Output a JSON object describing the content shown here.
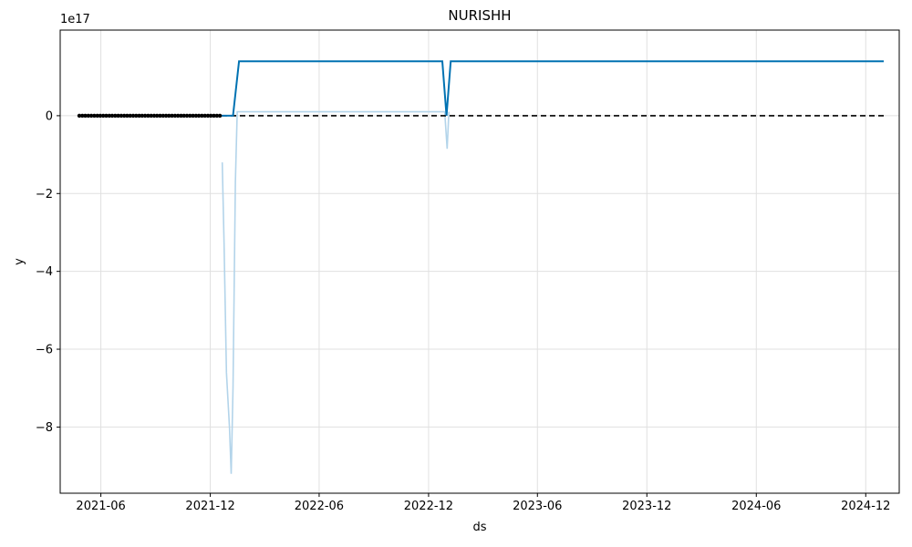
{
  "chart_data": {
    "type": "line",
    "title": "NURISHH",
    "xlabel": "ds",
    "ylabel": "y",
    "y_offset_label": "1e17",
    "x_tick_labels": [
      "2021-06",
      "2021-12",
      "2022-06",
      "2022-12",
      "2023-06",
      "2023-12",
      "2024-06",
      "2024-12"
    ],
    "x_ticks": [
      "2021-06-01",
      "2021-12-01",
      "2022-06-01",
      "2022-12-01",
      "2023-06-01",
      "2023-12-01",
      "2024-06-01",
      "2024-12-01"
    ],
    "y_tick_labels": [
      "0",
      "−2",
      "−4",
      "−6",
      "−8"
    ],
    "y_ticks": [
      0,
      -2,
      -4,
      -6,
      -8
    ],
    "y_unit_multiplier": "1e17",
    "xlim": [
      "2021-03-25",
      "2025-01-26"
    ],
    "ylim": [
      -9.7,
      2.2
    ],
    "grid": true,
    "colors": {
      "forecast": "#0072B2",
      "interval": "#b3d4ea",
      "actual": "#000000",
      "trend_dashed": "#000000",
      "grid": "#e0e0e0"
    },
    "actual_observations": {
      "x_start": "2021-04-26",
      "x_end": "2021-12-20",
      "interval_days": 5,
      "y": 0
    },
    "series": [
      {
        "role": "forecast",
        "style": "solid",
        "x": [
          "2021-12-20",
          "2022-01-08",
          "2022-01-18",
          "2022-12-24",
          "2022-12-31",
          "2023-01-07",
          "2024-12-31"
        ],
        "y": [
          0,
          0,
          1.4,
          1.4,
          0,
          1.4,
          1.4
        ]
      },
      {
        "role": "interval",
        "style": "light",
        "x": [
          "2021-12-21",
          "2021-12-24",
          "2021-12-28",
          "2022-01-02",
          "2022-01-05",
          "2022-01-08",
          "2022-01-12",
          "2022-01-15",
          "2022-12-28",
          "2023-01-01",
          "2023-01-04"
        ],
        "y": [
          -1.2,
          -3.3,
          -6.6,
          -8.0,
          -9.2,
          -7.0,
          -1.7,
          0.1,
          0.1,
          -0.85,
          0.1
        ]
      },
      {
        "role": "trend",
        "style": "dashed",
        "x": [
          "2021-12-20",
          "2024-12-31"
        ],
        "y": [
          0,
          0
        ]
      }
    ]
  }
}
